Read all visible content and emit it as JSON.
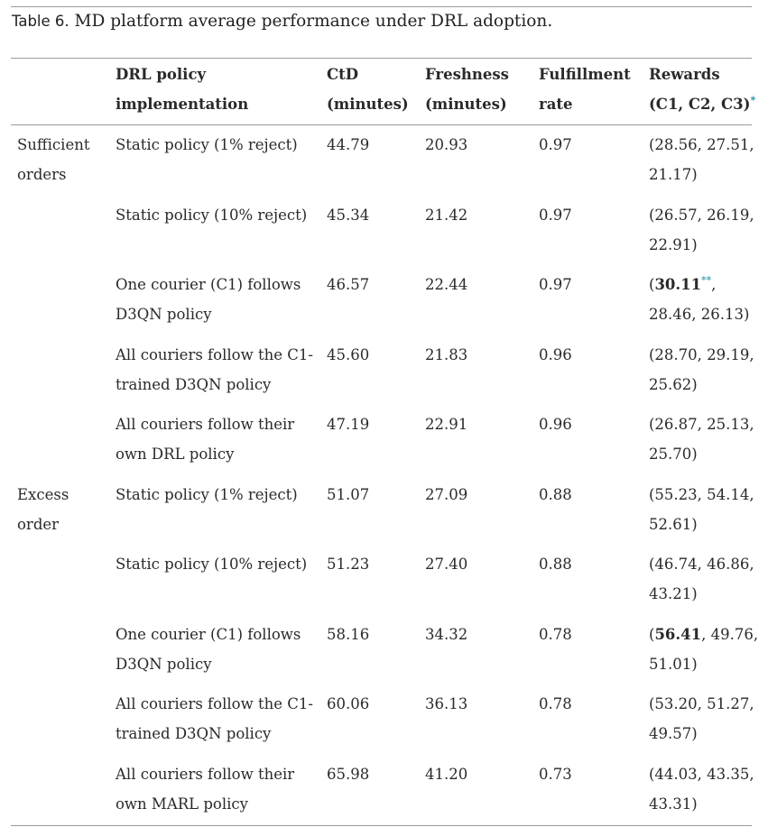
{
  "caption": {
    "label": "Table 6.",
    "title": "MD platform average performance under DRL adoption."
  },
  "headers": {
    "policy": "DRL policy\nimplementation",
    "ctd": "CtD\n(minutes)",
    "freshness": "Freshness\n(minutes)",
    "fulfillment": "Fulfillment\nrate",
    "rewards": "Rewards\n(C1, C2, C3)",
    "rewards_note": "*"
  },
  "groups": [
    {
      "label": "Sufficient\norders",
      "rows": [
        {
          "policy": "Static policy (1% reject)",
          "ctd": "44.79",
          "freshness": "20.93",
          "fulfillment": "0.97",
          "rewards": "(28.56, 27.51,\n21.17)"
        },
        {
          "policy": "Static policy (10% reject)",
          "ctd": "45.34",
          "freshness": "21.42",
          "fulfillment": "0.97",
          "rewards": "(26.57, 26.19,\n22.91)"
        },
        {
          "policy": "One courier (C1) follows\nD3QN policy",
          "ctd": "46.57",
          "freshness": "22.44",
          "fulfillment": "0.97",
          "rewards_open": "(",
          "rewards_bold": "30.11",
          "rewards_note": "**",
          "rewards_rest": ",\n28.46, 26.13)"
        },
        {
          "policy": "All couriers follow the C1-\ntrained D3QN policy",
          "ctd": "45.60",
          "freshness": "21.83",
          "fulfillment": "0.96",
          "rewards": "(28.70, 29.19,\n25.62)"
        },
        {
          "policy": "All couriers follow their\nown DRL policy",
          "ctd": "47.19",
          "freshness": "22.91",
          "fulfillment": "0.96",
          "rewards": "(26.87, 25.13,\n25.70)"
        }
      ]
    },
    {
      "label": "Excess\norder",
      "rows": [
        {
          "policy": "Static policy (1% reject)",
          "ctd": "51.07",
          "freshness": "27.09",
          "fulfillment": "0.88",
          "rewards": "(55.23, 54.14,\n52.61)"
        },
        {
          "policy": "Static policy (10% reject)",
          "ctd": "51.23",
          "freshness": "27.40",
          "fulfillment": "0.88",
          "rewards": "(46.74, 46.86,\n43.21)"
        },
        {
          "policy": "One courier (C1) follows\nD3QN policy",
          "ctd": "58.16",
          "freshness": "34.32",
          "fulfillment": "0.78",
          "rewards_open": "(",
          "rewards_bold": "56.41",
          "rewards_rest": ", 49.76,\n51.01)"
        },
        {
          "policy": "All couriers follow the C1-\ntrained D3QN policy",
          "ctd": "60.06",
          "freshness": "36.13",
          "fulfillment": "0.78",
          "rewards": "(53.20, 51.27,\n49.57)"
        },
        {
          "policy": "All couriers follow their\nown MARL policy",
          "ctd": "65.98",
          "freshness": "41.20",
          "fulfillment": "0.73",
          "rewards": "(44.03, 43.35,\n43.31)"
        }
      ]
    }
  ]
}
